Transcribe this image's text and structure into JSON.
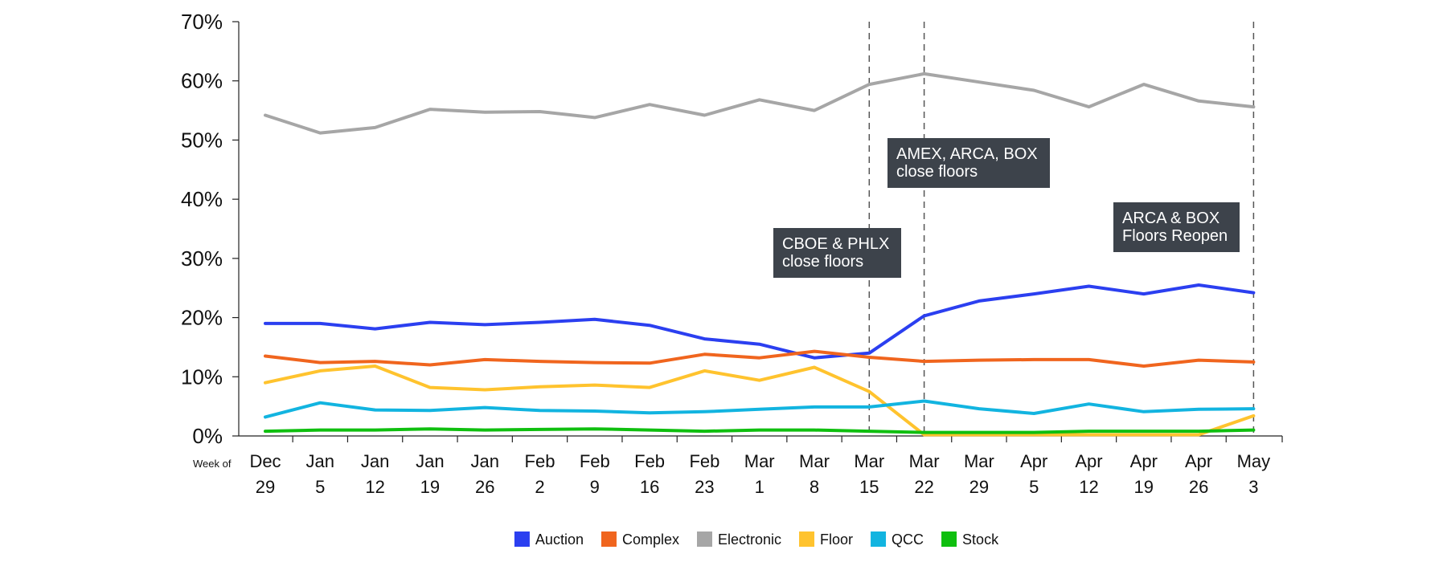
{
  "chart_data": {
    "type": "line",
    "x_prefix": "Week of",
    "categories": [
      [
        "Dec",
        "29"
      ],
      [
        "Jan",
        "5"
      ],
      [
        "Jan",
        "12"
      ],
      [
        "Jan",
        "19"
      ],
      [
        "Jan",
        "26"
      ],
      [
        "Feb",
        "2"
      ],
      [
        "Feb",
        "9"
      ],
      [
        "Feb",
        "16"
      ],
      [
        "Feb",
        "23"
      ],
      [
        "Mar",
        "1"
      ],
      [
        "Mar",
        "8"
      ],
      [
        "Mar",
        "15"
      ],
      [
        "Mar",
        "22"
      ],
      [
        "Mar",
        "29"
      ],
      [
        "Apr",
        "5"
      ],
      [
        "Apr",
        "12"
      ],
      [
        "Apr",
        "19"
      ],
      [
        "Apr",
        "26"
      ],
      [
        "May",
        "3"
      ]
    ],
    "ylim": [
      0,
      70
    ],
    "yticks": [
      "0%",
      "10%",
      "20%",
      "30%",
      "40%",
      "50%",
      "60%",
      "70%"
    ],
    "grid": false,
    "legend_position": "bottom-center",
    "series": [
      {
        "name": "Auction",
        "color": "#2b3ff0",
        "values": [
          19.0,
          19.0,
          18.1,
          19.2,
          18.8,
          19.2,
          19.7,
          18.7,
          16.4,
          15.5,
          13.2,
          14.0,
          20.3,
          22.8,
          24.0,
          25.3,
          24.0,
          25.5,
          24.2
        ]
      },
      {
        "name": "Complex",
        "color": "#f0651e",
        "values": [
          13.5,
          12.4,
          12.6,
          12.0,
          12.9,
          12.6,
          12.4,
          12.3,
          13.8,
          13.2,
          14.3,
          13.3,
          12.6,
          12.8,
          12.9,
          12.9,
          11.8,
          12.8,
          12.5
        ]
      },
      {
        "name": "Electronic",
        "color": "#a6a6a6",
        "values": [
          54.2,
          51.2,
          52.1,
          55.2,
          54.7,
          54.8,
          53.8,
          56.0,
          54.2,
          56.8,
          55.0,
          59.4,
          61.2,
          59.8,
          58.4,
          55.6,
          59.4,
          56.6,
          55.6
        ]
      },
      {
        "name": "Floor",
        "color": "#ffc32e",
        "values": [
          9.0,
          11.0,
          11.8,
          8.2,
          7.8,
          8.3,
          8.6,
          8.2,
          11.0,
          9.4,
          11.6,
          7.5,
          0.2,
          0.2,
          0.2,
          0.2,
          0.2,
          0.2,
          3.4
        ]
      },
      {
        "name": "QCC",
        "color": "#12b4e0",
        "values": [
          3.2,
          5.6,
          4.4,
          4.3,
          4.8,
          4.3,
          4.2,
          3.9,
          4.1,
          4.5,
          4.9,
          4.9,
          5.9,
          4.6,
          3.8,
          5.4,
          4.1,
          4.5,
          4.6
        ]
      },
      {
        "name": "Stock",
        "color": "#0fbf0f",
        "values": [
          0.8,
          1.0,
          1.0,
          1.2,
          1.0,
          1.1,
          1.2,
          1.0,
          0.8,
          1.0,
          1.0,
          0.8,
          0.6,
          0.6,
          0.6,
          0.8,
          0.8,
          0.8,
          1.0
        ]
      }
    ],
    "events": [
      {
        "index": 11,
        "lines": [
          "CBOE & PHLX",
          "close floors"
        ]
      },
      {
        "index": 12,
        "lines": [
          "AMEX, ARCA, BOX",
          "close floors"
        ]
      },
      {
        "index": 18,
        "lines": [
          "ARCA & BOX",
          "Floors Reopen"
        ]
      }
    ]
  }
}
